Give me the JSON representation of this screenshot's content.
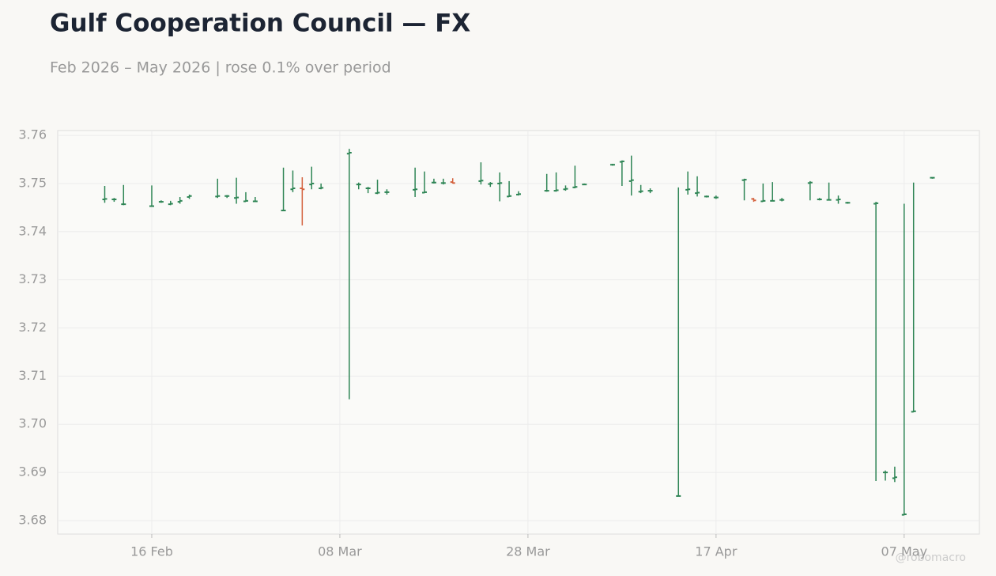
{
  "chart_data": {
    "type": "ohlc",
    "title": "Gulf Cooperation Council — FX",
    "subtitle": "Feb 2026 – May 2026 | rose 0.1% over period",
    "watermark": "@robomacro",
    "up_color": "#2e8555",
    "down_color": "#d4603c",
    "grid": true,
    "x": [
      "2026-02-11",
      "2026-02-12",
      "2026-02-13",
      "2026-02-16",
      "2026-02-17",
      "2026-02-18",
      "2026-02-19",
      "2026-02-20",
      "2026-02-23",
      "2026-02-24",
      "2026-02-25",
      "2026-02-26",
      "2026-02-27",
      "2026-03-02",
      "2026-03-03",
      "2026-03-04",
      "2026-03-05",
      "2026-03-06",
      "2026-03-09",
      "2026-03-10",
      "2026-03-11",
      "2026-03-12",
      "2026-03-13",
      "2026-03-16",
      "2026-03-17",
      "2026-03-18",
      "2026-03-19",
      "2026-03-20",
      "2026-03-23",
      "2026-03-24",
      "2026-03-25",
      "2026-03-26",
      "2026-03-27",
      "2026-03-30",
      "2026-03-31",
      "2026-04-01",
      "2026-04-02",
      "2026-04-03",
      "2026-04-06",
      "2026-04-07",
      "2026-04-08",
      "2026-04-09",
      "2026-04-10",
      "2026-04-13",
      "2026-04-14",
      "2026-04-15",
      "2026-04-16",
      "2026-04-17",
      "2026-04-20",
      "2026-04-21",
      "2026-04-22",
      "2026-04-23",
      "2026-04-24",
      "2026-04-27",
      "2026-04-28",
      "2026-04-29",
      "2026-04-30",
      "2026-05-01",
      "2026-05-04",
      "2026-05-05",
      "2026-05-06",
      "2026-05-07",
      "2026-05-08",
      "2026-05-10"
    ],
    "open": [
      3.7467,
      3.7467,
      3.7457,
      3.7453,
      3.7462,
      3.7457,
      3.7462,
      3.7472,
      3.7473,
      3.7474,
      3.747,
      3.7463,
      3.7463,
      3.7444,
      3.7488,
      3.749,
      3.7498,
      3.749,
      3.7562,
      3.7498,
      3.749,
      3.748,
      3.7482,
      3.7487,
      3.7481,
      3.7502,
      3.7501,
      3.7503,
      3.7505,
      3.7499,
      3.75,
      3.7473,
      3.7477,
      3.7485,
      3.7485,
      3.7488,
      3.7492,
      3.7498,
      3.7539,
      3.7545,
      3.7505,
      3.7483,
      3.7485,
      3.6851,
      3.7487,
      3.748,
      3.7473,
      3.7471,
      3.7507,
      3.7468,
      3.7463,
      3.7464,
      3.7466,
      3.7501,
      3.7467,
      3.7466,
      3.7466,
      3.746,
      3.7458,
      3.69,
      3.6888,
      3.6812,
      3.7026,
      3.7512
    ],
    "high": [
      3.7495,
      3.747,
      3.7497,
      3.7496,
      3.7465,
      3.7464,
      3.7472,
      3.7477,
      3.751,
      3.7476,
      3.7512,
      3.7482,
      3.7472,
      3.7533,
      3.7527,
      3.7513,
      3.7535,
      3.75,
      3.7572,
      3.7502,
      3.7493,
      3.7508,
      3.7488,
      3.7533,
      3.7525,
      3.751,
      3.751,
      3.7511,
      3.7544,
      3.7503,
      3.7523,
      3.7505,
      3.7484,
      3.752,
      3.7523,
      3.7496,
      3.7537,
      3.75,
      3.7541,
      3.7548,
      3.7558,
      3.7497,
      3.749,
      3.7492,
      3.7525,
      3.7515,
      3.7475,
      3.7475,
      3.751,
      3.747,
      3.75,
      3.7503,
      3.747,
      3.7505,
      3.747,
      3.7502,
      3.7475,
      3.7462,
      3.7462,
      3.6904,
      3.6912,
      3.7458,
      3.7502,
      3.7513
    ],
    "low": [
      3.746,
      3.7462,
      3.7455,
      3.7452,
      3.746,
      3.7455,
      3.7458,
      3.7468,
      3.747,
      3.747,
      3.7458,
      3.7462,
      3.7462,
      3.7443,
      3.7482,
      3.7413,
      3.7488,
      3.7488,
      3.7052,
      3.7488,
      3.748,
      3.7478,
      3.7477,
      3.7472,
      3.748,
      3.75,
      3.7498,
      3.75,
      3.7498,
      3.7493,
      3.7463,
      3.7472,
      3.7475,
      3.7483,
      3.7483,
      3.7485,
      3.749,
      3.7497,
      3.7537,
      3.7495,
      3.7475,
      3.748,
      3.748,
      3.685,
      3.7477,
      3.7473,
      3.7471,
      3.7468,
      3.7465,
      3.7462,
      3.7462,
      3.7463,
      3.7463,
      3.7465,
      3.7465,
      3.7465,
      3.7458,
      3.7458,
      3.6882,
      3.6883,
      3.688,
      3.6811,
      3.7025,
      3.751
    ],
    "close": [
      3.7468,
      3.7467,
      3.7457,
      3.7453,
      3.7462,
      3.7458,
      3.7464,
      3.7474,
      3.7474,
      3.7474,
      3.7471,
      3.7464,
      3.7463,
      3.7444,
      3.749,
      3.7488,
      3.75,
      3.7491,
      3.7564,
      3.7498,
      3.749,
      3.7481,
      3.7482,
      3.7488,
      3.7482,
      3.7502,
      3.7501,
      3.7501,
      3.7506,
      3.75,
      3.7501,
      3.7474,
      3.7478,
      3.7485,
      3.7486,
      3.7489,
      3.7493,
      3.7498,
      3.7539,
      3.7546,
      3.7507,
      3.7484,
      3.7485,
      3.6851,
      3.7488,
      3.7481,
      3.7473,
      3.7471,
      3.7508,
      3.7465,
      3.7464,
      3.7464,
      3.7466,
      3.7502,
      3.7467,
      3.7466,
      3.7467,
      3.746,
      3.7459,
      3.69,
      3.689,
      3.6813,
      3.7027,
      3.7512
    ],
    "xlim": [
      "2026-02-06",
      "2026-05-15"
    ],
    "xticks": [
      {
        "value": "2026-02-16",
        "label": "16 Feb"
      },
      {
        "value": "2026-03-08",
        "label": "08 Mar"
      },
      {
        "value": "2026-03-28",
        "label": "28 Mar"
      },
      {
        "value": "2026-04-17",
        "label": "17 Apr"
      },
      {
        "value": "2026-05-07",
        "label": "07 May"
      }
    ],
    "ylim": [
      3.6772,
      3.761
    ],
    "yticks": [
      3.68,
      3.69,
      {
        "value": 3.7,
        "label": "3.70"
      },
      3.71,
      3.72,
      3.73,
      3.74,
      3.75,
      3.76
    ]
  }
}
